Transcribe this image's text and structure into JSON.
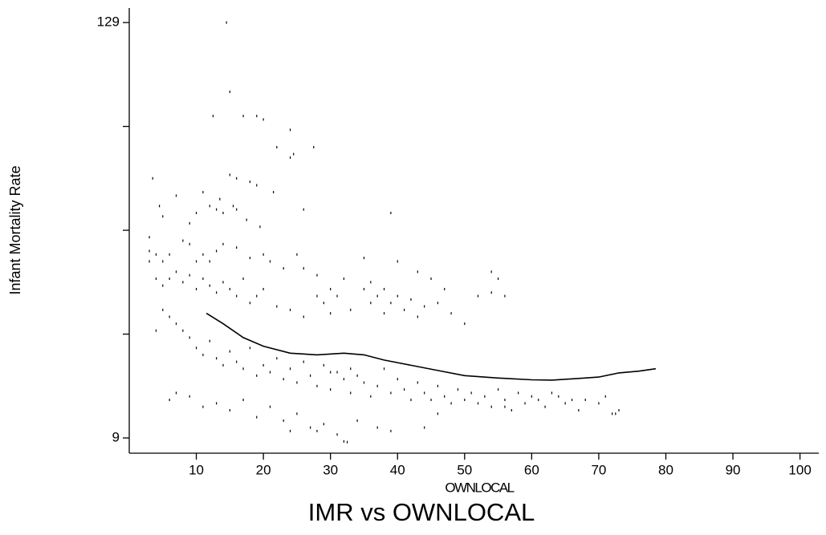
{
  "chart_data": {
    "type": "scatter",
    "title": "IMR vs OWNLOCAL",
    "xlabel": "OWNLOCAL",
    "ylabel": "Infant Mortality Rate",
    "xlim": [
      0,
      102.8
    ],
    "ylim": [
      4.6,
      133.2
    ],
    "xticks": [
      10,
      20,
      30,
      40,
      50,
      60,
      70,
      80,
      90,
      100
    ],
    "yticks": [
      9,
      129
    ],
    "yminor_ticks": [
      39,
      69,
      99
    ],
    "color": "#000000",
    "points": {
      "x": [
        14.5,
        15,
        12.5,
        17,
        19,
        20,
        24,
        22,
        27.5,
        24.5,
        24,
        3.5,
        15,
        16,
        18,
        19,
        21.5,
        7,
        11,
        13.5,
        15.5,
        16,
        10,
        12,
        13,
        39,
        26,
        4.5,
        5,
        9,
        14,
        17.5,
        19.5,
        3,
        3,
        4,
        5,
        6,
        8,
        9,
        10,
        11,
        12,
        13,
        14,
        16,
        18,
        20,
        21,
        23,
        25,
        26,
        28,
        30,
        32,
        35,
        36,
        38,
        40,
        43,
        45,
        47,
        52,
        54,
        55,
        56,
        3,
        4,
        5,
        6,
        7,
        8,
        9,
        10,
        11,
        12,
        13,
        14,
        15,
        16,
        17,
        18,
        19,
        20,
        22,
        24,
        26,
        28,
        29,
        30,
        31,
        33,
        35,
        36,
        37,
        38,
        39,
        40,
        41,
        42,
        43,
        44,
        46,
        48,
        50,
        54,
        8,
        9,
        10,
        11,
        12,
        13,
        14,
        15,
        16,
        17,
        18,
        19,
        20,
        21,
        22,
        23,
        24,
        25,
        26,
        27,
        28,
        29,
        30,
        31,
        32,
        33,
        34,
        35,
        36,
        37,
        38,
        39,
        40,
        41,
        42,
        43,
        44,
        45,
        46,
        47,
        48,
        49,
        50,
        51,
        52,
        53,
        54,
        55,
        56,
        57,
        58,
        59,
        60,
        61,
        62,
        63,
        64,
        65,
        66,
        67,
        68,
        70,
        71,
        72,
        73,
        6,
        7,
        9,
        11,
        13,
        15,
        17,
        19,
        21,
        23,
        25,
        27,
        28,
        29,
        31,
        32,
        34,
        37,
        39,
        44,
        46,
        56,
        72.5,
        24,
        32.5,
        30,
        33,
        6,
        5,
        7,
        4
      ],
      "y": [
        129,
        109,
        102,
        102,
        102,
        101,
        98,
        93,
        93,
        91,
        90,
        84,
        85,
        84,
        83,
        82,
        80,
        79,
        80,
        78,
        76,
        75,
        74,
        76,
        75,
        74,
        75,
        76,
        73,
        71,
        74,
        72,
        70,
        67,
        63,
        62,
        60,
        62,
        66,
        65,
        60,
        62,
        60,
        63,
        65,
        64,
        61,
        62,
        60,
        58,
        62,
        58,
        56,
        52,
        55,
        61,
        54,
        52,
        60,
        57,
        55,
        52,
        50,
        57,
        55,
        50,
        60,
        55,
        53,
        55,
        57,
        54,
        56,
        52,
        55,
        53,
        51,
        54,
        52,
        50,
        55,
        48,
        50,
        52,
        47,
        46,
        44,
        50,
        48,
        45,
        50,
        46,
        52,
        48,
        50,
        45,
        48,
        50,
        46,
        49,
        44,
        47,
        48,
        45,
        42,
        51,
        40,
        38,
        35,
        33,
        37,
        32,
        30,
        34,
        31,
        29,
        35,
        27,
        30,
        28,
        32,
        26,
        29,
        25,
        31,
        27,
        24,
        30,
        23,
        28,
        26,
        22,
        27,
        25,
        21,
        24,
        29,
        22,
        26,
        23,
        20,
        25,
        22,
        20,
        24,
        21,
        19,
        23,
        20,
        22,
        19,
        21,
        18,
        23,
        20,
        17,
        22,
        19,
        21,
        20,
        18,
        22,
        21,
        19,
        20,
        17,
        20,
        19,
        21,
        16,
        17,
        20,
        22,
        21,
        18,
        19,
        17,
        20,
        15,
        18,
        14,
        16,
        12,
        11,
        13,
        10,
        8,
        14,
        12,
        11,
        12,
        16,
        18,
        16,
        11,
        7.8,
        28,
        29,
        44,
        46,
        42,
        40
      ]
    },
    "smooth": {
      "x": [
        11.5,
        14,
        17,
        20,
        24,
        28,
        32,
        35,
        38,
        42,
        46,
        50,
        55,
        60,
        63,
        67,
        70,
        73,
        76,
        78.5
      ],
      "y": [
        45,
        42,
        38,
        35.5,
        33.5,
        33,
        33.5,
        33,
        31.5,
        30,
        28.5,
        27,
        26.3,
        25.8,
        25.7,
        26.2,
        26.6,
        27.8,
        28.3,
        29
      ]
    }
  }
}
